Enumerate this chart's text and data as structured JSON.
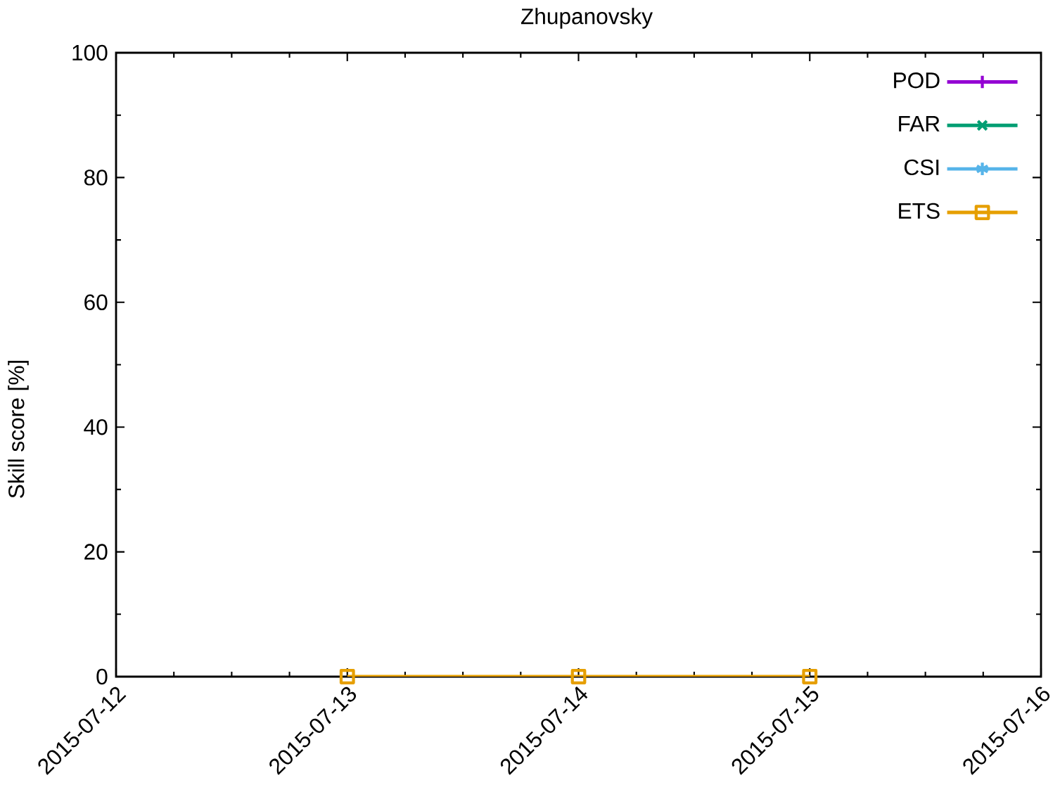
{
  "chart_data": {
    "type": "line",
    "title": "Zhupanovsky",
    "ylabel": "Skill score [%]",
    "x": [
      "2015-07-13",
      "2015-07-14",
      "2015-07-15"
    ],
    "series": [
      {
        "name": "POD",
        "color": "#9400d3",
        "marker": "plus",
        "values": [
          null,
          null,
          null
        ]
      },
      {
        "name": "FAR",
        "color": "#009e73",
        "marker": "cross",
        "values": [
          null,
          null,
          null
        ]
      },
      {
        "name": "CSI",
        "color": "#56b4e9",
        "marker": "star",
        "values": [
          null,
          null,
          null
        ]
      },
      {
        "name": "ETS",
        "color": "#e69f00",
        "marker": "square",
        "values": [
          0,
          0,
          0
        ]
      }
    ],
    "xlim": [
      "2015-07-12",
      "2015-07-16"
    ],
    "xticks": [
      "2015-07-12",
      "2015-07-13",
      "2015-07-14",
      "2015-07-15",
      "2015-07-16"
    ],
    "ylim": [
      0,
      100
    ],
    "yticks": [
      0,
      20,
      40,
      60,
      80,
      100
    ],
    "grid": false,
    "legend": "top right"
  }
}
